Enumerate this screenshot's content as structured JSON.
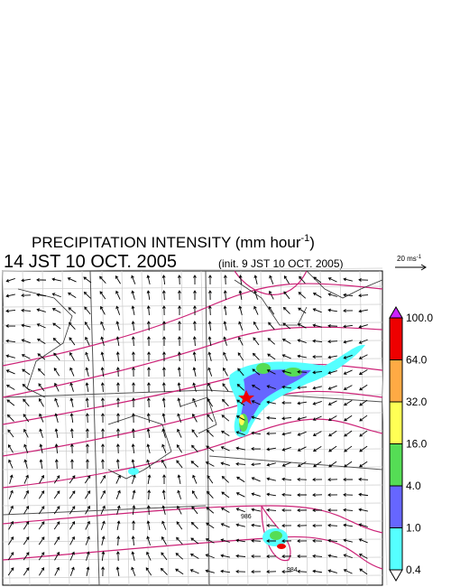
{
  "title": {
    "main": "PRECIPITATION INTENSITY (mm hour",
    "superscript": "-1",
    "close": ")"
  },
  "subtitle": {
    "time": "14 JST 10 OCT. 2005",
    "init": "(init. 9 JST 10 OCT. 2005)"
  },
  "reference_vector": {
    "label": "20 ms",
    "superscript": "-1"
  },
  "isobar_labels": [
    "986",
    "984"
  ],
  "colorbar": {
    "labels": [
      "100.0",
      "64.0",
      "32.0",
      "16.0",
      "4.0",
      "1.0",
      "0.4"
    ],
    "colors": [
      "#ee0000",
      "#ffaa44",
      "#ffff55",
      "#55dd55",
      "#6666ff",
      "#55ffff"
    ],
    "over_color": "#cc22ff",
    "under_color": "#ffffff"
  }
}
